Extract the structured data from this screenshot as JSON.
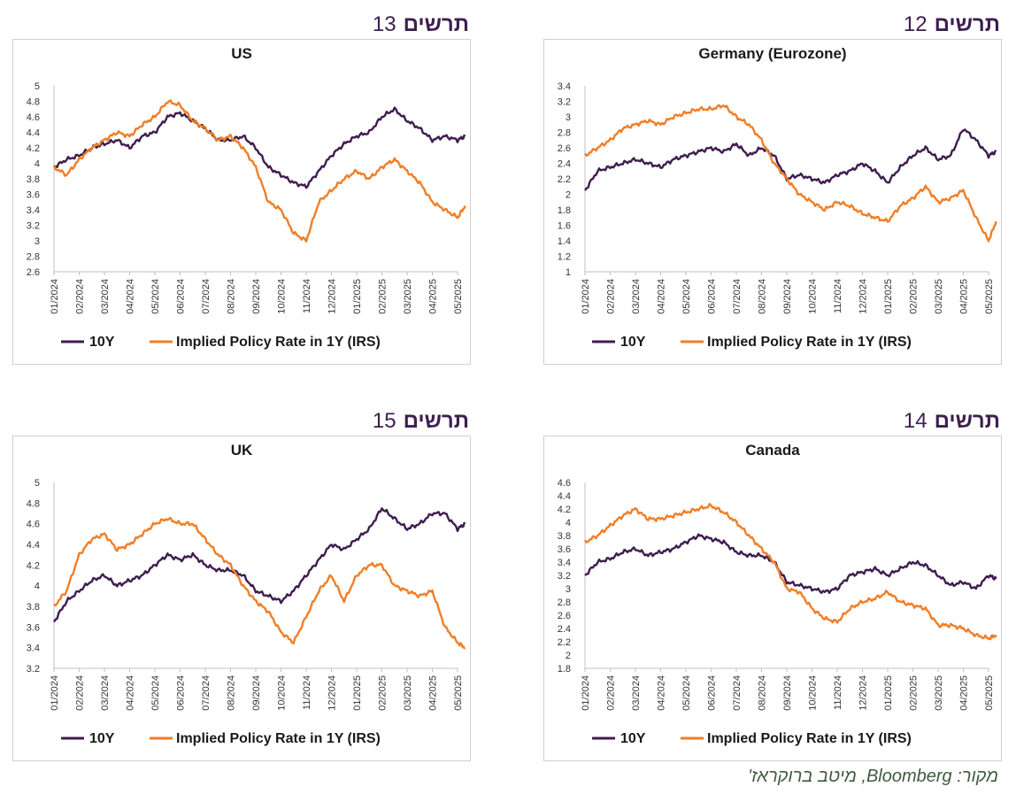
{
  "colors": {
    "series_10y": "#3f1d4f",
    "series_irs": "#f07e26",
    "title_text": "#3d1f4f",
    "source_text": "#3f5b3f"
  },
  "figures": [
    {
      "word": "תרשים",
      "number": "13"
    },
    {
      "word": "תרשים",
      "number": "12"
    },
    {
      "word": "תרשים",
      "number": "15"
    },
    {
      "word": "תרשים",
      "number": "14"
    }
  ],
  "source": "מקור: Bloomberg, מיטב ברוקראז'",
  "chart_data": [
    {
      "type": "line",
      "title": "US",
      "x_tick_labels": [
        "01/2024",
        "02/2024",
        "03/2024",
        "04/2024",
        "05/2024",
        "06/2024",
        "07/2024",
        "08/2024",
        "09/2024",
        "10/2024",
        "11/2024",
        "12/2024",
        "01/2025",
        "02/2025",
        "03/2025",
        "04/2025",
        "05/2025"
      ],
      "y_tick_labels": [
        "2.6",
        "2.8",
        "3",
        "3.2",
        "3.4",
        "3.6",
        "3.8",
        "4",
        "4.2",
        "4.4",
        "4.6",
        "4.8",
        "5"
      ],
      "ylim": [
        2.6,
        5.0
      ],
      "x_months": [
        0,
        0.5,
        1,
        1.5,
        2,
        2.5,
        3,
        3.5,
        4,
        4.5,
        5,
        5.5,
        6,
        6.5,
        7,
        7.5,
        8,
        8.5,
        9,
        9.5,
        10,
        10.5,
        11,
        11.5,
        12,
        12.5,
        13,
        13.5,
        14,
        14.5,
        15,
        15.5,
        16,
        16.3
      ],
      "series": [
        {
          "name": "10Y",
          "values": [
            3.95,
            4.05,
            4.1,
            4.2,
            4.25,
            4.3,
            4.2,
            4.35,
            4.4,
            4.6,
            4.65,
            4.55,
            4.45,
            4.3,
            4.3,
            4.35,
            4.2,
            3.95,
            3.85,
            3.75,
            3.7,
            3.9,
            4.1,
            4.25,
            4.35,
            4.4,
            4.6,
            4.7,
            4.55,
            4.45,
            4.3,
            4.35,
            4.3,
            4.35
          ]
        },
        {
          "name": "Implied Policy Rate in 1Y (IRS)",
          "values": [
            3.95,
            3.85,
            4.05,
            4.2,
            4.3,
            4.4,
            4.35,
            4.5,
            4.6,
            4.8,
            4.75,
            4.55,
            4.45,
            4.3,
            4.35,
            4.2,
            3.95,
            3.5,
            3.4,
            3.1,
            3.0,
            3.5,
            3.65,
            3.8,
            3.9,
            3.8,
            3.95,
            4.05,
            3.9,
            3.75,
            3.5,
            3.4,
            3.3,
            3.45
          ]
        }
      ],
      "legend_position": "bottom",
      "grid": false
    },
    {
      "type": "line",
      "title": "Germany  (Eurozone)",
      "x_tick_labels": [
        "01/2024",
        "02/2024",
        "03/2024",
        "04/2024",
        "05/2024",
        "06/2024",
        "07/2024",
        "08/2024",
        "09/2024",
        "10/2024",
        "11/2024",
        "12/2024",
        "01/2025",
        "02/2025",
        "03/2025",
        "04/2025",
        "05/2025"
      ],
      "y_tick_labels": [
        "1",
        "1.2",
        "1.4",
        "1.6",
        "1.8",
        "2",
        "2.2",
        "2.4",
        "2.6",
        "2.8",
        "3",
        "3.2",
        "3.4"
      ],
      "ylim": [
        1.0,
        3.4
      ],
      "x_months": [
        0,
        0.5,
        1,
        1.5,
        2,
        2.5,
        3,
        3.5,
        4,
        4.5,
        5,
        5.5,
        6,
        6.5,
        7,
        7.5,
        8,
        8.5,
        9,
        9.5,
        10,
        10.5,
        11,
        11.5,
        12,
        12.5,
        13,
        13.5,
        14,
        14.5,
        15,
        15.5,
        16,
        16.3
      ],
      "series": [
        {
          "name": "10Y",
          "values": [
            2.05,
            2.3,
            2.35,
            2.4,
            2.45,
            2.4,
            2.35,
            2.45,
            2.5,
            2.55,
            2.6,
            2.55,
            2.65,
            2.5,
            2.6,
            2.5,
            2.2,
            2.25,
            2.2,
            2.15,
            2.25,
            2.3,
            2.4,
            2.3,
            2.15,
            2.35,
            2.5,
            2.6,
            2.45,
            2.5,
            2.85,
            2.7,
            2.5,
            2.55
          ]
        },
        {
          "name": "Implied Policy Rate in 1Y (IRS)",
          "values": [
            2.5,
            2.6,
            2.7,
            2.85,
            2.9,
            2.95,
            2.9,
            3.0,
            3.05,
            3.1,
            3.1,
            3.15,
            3.0,
            2.9,
            2.7,
            2.4,
            2.2,
            2.0,
            1.9,
            1.8,
            1.9,
            1.85,
            1.75,
            1.7,
            1.65,
            1.85,
            1.95,
            2.1,
            1.9,
            1.95,
            2.05,
            1.7,
            1.4,
            1.65
          ]
        }
      ],
      "legend_position": "bottom",
      "grid": false
    },
    {
      "type": "line",
      "title": "UK",
      "x_tick_labels": [
        "01/2024",
        "02/2024",
        "03/2024",
        "04/2024",
        "05/2024",
        "06/2024",
        "07/2024",
        "08/2024",
        "09/2024",
        "10/2024",
        "11/2024",
        "12/2024",
        "01/2025",
        "02/2025",
        "03/2025",
        "04/2025",
        "05/2025"
      ],
      "y_tick_labels": [
        "3.2",
        "3.4",
        "3.6",
        "3.8",
        "4",
        "4.2",
        "4.4",
        "4.6",
        "4.8",
        "5"
      ],
      "ylim": [
        3.2,
        5.0
      ],
      "x_months": [
        0,
        0.5,
        1,
        1.5,
        2,
        2.5,
        3,
        3.5,
        4,
        4.5,
        5,
        5.5,
        6,
        6.5,
        7,
        7.5,
        8,
        8.5,
        9,
        9.5,
        10,
        10.5,
        11,
        11.5,
        12,
        12.5,
        13,
        13.5,
        14,
        14.5,
        15,
        15.5,
        16,
        16.3
      ],
      "series": [
        {
          "name": "10Y",
          "values": [
            3.65,
            3.85,
            3.95,
            4.05,
            4.1,
            4.0,
            4.05,
            4.1,
            4.2,
            4.3,
            4.25,
            4.3,
            4.2,
            4.15,
            4.15,
            4.1,
            3.95,
            3.9,
            3.85,
            3.95,
            4.1,
            4.25,
            4.4,
            4.35,
            4.45,
            4.55,
            4.75,
            4.65,
            4.55,
            4.6,
            4.7,
            4.7,
            4.55,
            4.6
          ]
        },
        {
          "name": "Implied Policy Rate in 1Y (IRS)",
          "values": [
            3.8,
            3.95,
            4.3,
            4.45,
            4.5,
            4.35,
            4.4,
            4.5,
            4.6,
            4.65,
            4.6,
            4.6,
            4.45,
            4.3,
            4.2,
            4.0,
            3.85,
            3.75,
            3.55,
            3.45,
            3.7,
            3.95,
            4.1,
            3.85,
            4.1,
            4.2,
            4.2,
            4.0,
            3.95,
            3.9,
            3.95,
            3.6,
            3.45,
            3.4
          ]
        }
      ],
      "legend_position": "bottom",
      "grid": false
    },
    {
      "type": "line",
      "title": "Canada",
      "x_tick_labels": [
        "01/2024",
        "02/2024",
        "03/2024",
        "04/2024",
        "05/2024",
        "06/2024",
        "07/2024",
        "08/2024",
        "09/2024",
        "10/2024",
        "11/2024",
        "12/2024",
        "01/2025",
        "02/2025",
        "03/2025",
        "04/2025",
        "05/2025"
      ],
      "y_tick_labels": [
        "1.8",
        "2",
        "2.2",
        "2.4",
        "2.6",
        "2.8",
        "3",
        "3.2",
        "3.4",
        "3.6",
        "3.8",
        "4",
        "4.2",
        "4.4",
        "4.6"
      ],
      "ylim": [
        1.8,
        4.6
      ],
      "x_months": [
        0,
        0.5,
        1,
        1.5,
        2,
        2.5,
        3,
        3.5,
        4,
        4.5,
        5,
        5.5,
        6,
        6.5,
        7,
        7.5,
        8,
        8.5,
        9,
        9.5,
        10,
        10.5,
        11,
        11.5,
        12,
        12.5,
        13,
        13.5,
        14,
        14.5,
        15,
        15.5,
        16,
        16.3
      ],
      "series": [
        {
          "name": "10Y",
          "values": [
            3.2,
            3.4,
            3.45,
            3.55,
            3.6,
            3.5,
            3.55,
            3.6,
            3.7,
            3.8,
            3.75,
            3.7,
            3.55,
            3.5,
            3.5,
            3.4,
            3.1,
            3.05,
            3.0,
            2.95,
            3.0,
            3.2,
            3.25,
            3.3,
            3.2,
            3.3,
            3.4,
            3.35,
            3.2,
            3.05,
            3.1,
            3.0,
            3.2,
            3.15
          ]
        },
        {
          "name": "Implied Policy Rate in 1Y (IRS)",
          "values": [
            3.7,
            3.8,
            3.95,
            4.1,
            4.2,
            4.05,
            4.05,
            4.1,
            4.15,
            4.2,
            4.25,
            4.15,
            4.0,
            3.8,
            3.6,
            3.4,
            3.0,
            2.95,
            2.7,
            2.55,
            2.5,
            2.7,
            2.8,
            2.85,
            2.95,
            2.8,
            2.75,
            2.7,
            2.45,
            2.45,
            2.4,
            2.3,
            2.25,
            2.3
          ]
        }
      ],
      "legend_position": "bottom",
      "grid": false
    }
  ]
}
